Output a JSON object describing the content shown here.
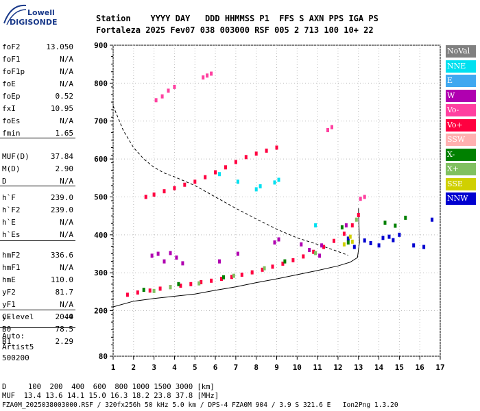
{
  "logo": {
    "line1": "Lowell",
    "line2": "DIGISONDE"
  },
  "header": {
    "row1": "Station    YYYY DAY   DDD HHMMSS P1  FFS S AXN PPS IGA PS",
    "row2": "Fortaleza 2025 Fev07 038 003000 RSF 005 2 713 100 10+ 22"
  },
  "params": [
    {
      "name": "foF2",
      "value": "13.050"
    },
    {
      "name": "foF1",
      "value": "N/A"
    },
    {
      "name": "foF1p",
      "value": "N/A"
    },
    {
      "name": "foE",
      "value": "N/A"
    },
    {
      "name": "foEp",
      "value": "0.52"
    },
    {
      "name": "fxI",
      "value": "10.95"
    },
    {
      "name": "foEs",
      "value": "N/A"
    },
    {
      "name": "fmin",
      "value": "1.65"
    },
    {
      "name": "MUF(D)",
      "value": "37.84"
    },
    {
      "name": "M(D)",
      "value": "2.90"
    },
    {
      "name": "D",
      "value": "N/A"
    },
    {
      "name": "h`F",
      "value": "239.0"
    },
    {
      "name": "h`F2",
      "value": "239.0"
    },
    {
      "name": "h`E",
      "value": "N/A"
    },
    {
      "name": "h`Es",
      "value": "N/A"
    },
    {
      "name": "hmF2",
      "value": "336.6"
    },
    {
      "name": "hmF1",
      "value": "N/A"
    },
    {
      "name": "hmE",
      "value": "110.0"
    },
    {
      "name": "yF2",
      "value": "81.7"
    },
    {
      "name": "yF1",
      "value": "N/A"
    },
    {
      "name": "yE",
      "value": "20.0"
    },
    {
      "name": "B0",
      "value": "78.5"
    },
    {
      "name": "B1",
      "value": "2.29"
    },
    {
      "name": "C-level",
      "value": "44"
    }
  ],
  "auto": {
    "line1": "Auto:",
    "line2": "Artist5",
    "line3": "500200"
  },
  "legend": [
    {
      "label": "NoVal",
      "color": "#808080"
    },
    {
      "label": "NNE",
      "color": "#00e0f0"
    },
    {
      "label": "E",
      "color": "#40a8f0"
    },
    {
      "label": "W",
      "color": "#b000b0"
    },
    {
      "label": "Vo-",
      "color": "#ff40a0"
    },
    {
      "label": "Vo+",
      "color": "#ff0040"
    },
    {
      "label": "SSW",
      "color": "#ffb0b0"
    },
    {
      "label": "X-",
      "color": "#008000"
    },
    {
      "label": "X+",
      "color": "#80c060"
    },
    {
      "label": "SSE",
      "color": "#d0d000"
    },
    {
      "label": "NNW",
      "color": "#0000d0"
    }
  ],
  "footer": {
    "line1": "D     100  200  400  600  800 1000 1500 3000 [km]",
    "line2": "MUF  13.4 13.6 14.1 15.0 16.3 18.2 23.8 37.8 [MHz]",
    "line3": "FZA0M_2025038003000.RSF / 320fx256h 50 kHz 5.0 km / DPS-4 FZA0M 904 / 3.9 S 321.6 E   Ion2Png 1.3.20"
  },
  "chart_data": {
    "type": "scatter",
    "xlim": [
      1,
      17
    ],
    "ylim": [
      80,
      900
    ],
    "x_ticks": [
      1,
      2,
      3,
      4,
      5,
      6,
      7,
      8,
      9,
      10,
      11,
      12,
      13,
      14,
      15,
      16,
      17
    ],
    "y_ticks": [
      80,
      200,
      300,
      400,
      500,
      600,
      700,
      800,
      900
    ],
    "series": [
      {
        "name": "Vo+",
        "color": "#ff0040",
        "x": [
          1.7,
          2.2,
          2.8,
          3.3,
          3.8,
          4.3,
          4.8,
          5.3,
          5.8,
          6.3,
          6.8,
          7.3,
          7.8,
          8.3,
          8.8,
          9.3,
          9.8,
          10.3,
          10.8,
          11.3,
          11.8,
          12.3,
          12.7,
          13.0
        ],
        "y": [
          242,
          248,
          253,
          258,
          262,
          266,
          270,
          275,
          279,
          284,
          289,
          295,
          301,
          308,
          316,
          324,
          333,
          343,
          355,
          368,
          384,
          403,
          425,
          452
        ]
      },
      {
        "name": "Vo+",
        "color": "#ff0040",
        "x": [
          2.6,
          3.0,
          3.5,
          4.0,
          4.5,
          5.0,
          5.5,
          6.0,
          6.5,
          7.0,
          7.5,
          8.0,
          8.5,
          9.0
        ],
        "y": [
          500,
          506,
          515,
          523,
          532,
          540,
          552,
          565,
          578,
          592,
          605,
          614,
          622,
          630
        ]
      },
      {
        "name": "Vo-",
        "color": "#ff40a0",
        "x": [
          3.1,
          3.4,
          3.7,
          4.0,
          5.4,
          5.6,
          5.8,
          11.5,
          11.7,
          13.1,
          13.3
        ],
        "y": [
          755,
          765,
          780,
          790,
          815,
          820,
          825,
          676,
          684,
          495,
          500
        ]
      },
      {
        "name": "W",
        "color": "#b000b0",
        "x": [
          2.9,
          3.2,
          3.5,
          3.8,
          4.1,
          4.4,
          6.2,
          7.1,
          8.9,
          9.1,
          10.2,
          10.6,
          11.1,
          11.2,
          12.4
        ],
        "y": [
          345,
          350,
          330,
          352,
          340,
          325,
          330,
          350,
          380,
          388,
          375,
          360,
          345,
          372,
          425
        ]
      },
      {
        "name": "NNE",
        "color": "#00e0f0",
        "x": [
          6.2,
          7.1,
          8.0,
          8.2,
          8.9,
          9.1,
          10.9
        ],
        "y": [
          560,
          540,
          520,
          528,
          538,
          545,
          425
        ]
      },
      {
        "name": "NNW",
        "color": "#0000d0",
        "x": [
          12.5,
          12.8,
          13.3,
          13.6,
          14.0,
          14.2,
          14.5,
          14.7,
          15.0,
          15.7,
          16.2,
          16.6
        ],
        "y": [
          390,
          368,
          385,
          378,
          372,
          392,
          395,
          386,
          400,
          372,
          368,
          440
        ]
      },
      {
        "name": "X-",
        "color": "#008000",
        "x": [
          2.5,
          4.2,
          6.4,
          9.4,
          12.2,
          12.5,
          14.3,
          14.8,
          15.3
        ],
        "y": [
          255,
          270,
          288,
          330,
          420,
          380,
          432,
          424,
          445
        ]
      },
      {
        "name": "X+",
        "color": "#80c060",
        "x": [
          3.0,
          3.8,
          5.2,
          6.9,
          8.4,
          10.9,
          12.9
        ],
        "y": [
          252,
          262,
          272,
          292,
          312,
          352,
          440
        ]
      },
      {
        "name": "SSE",
        "color": "#d0d000",
        "x": [
          12.3,
          12.6,
          12.7
        ],
        "y": [
          375,
          395,
          382
        ]
      }
    ],
    "profile_curve": {
      "x": [
        1.0,
        2.0,
        3.0,
        4.0,
        5.0,
        6.0,
        7.0,
        8.0,
        9.0,
        10.0,
        11.0,
        12.0,
        12.6,
        12.95,
        13.05,
        13.0
      ],
      "y": [
        210,
        225,
        232,
        238,
        244,
        254,
        263,
        274,
        284,
        295,
        306,
        318,
        328,
        340,
        380,
        470
      ]
    },
    "muf_curve": {
      "x": [
        1.0,
        1.5,
        2.0,
        2.5,
        3.0,
        3.5,
        4.0,
        5.0,
        6.0,
        7.0,
        8.0,
        9.0,
        10.0,
        11.0,
        12.0,
        12.5
      ],
      "y": [
        740,
        675,
        630,
        600,
        578,
        563,
        553,
        530,
        500,
        470,
        442,
        415,
        392,
        375,
        356,
        346
      ]
    }
  }
}
